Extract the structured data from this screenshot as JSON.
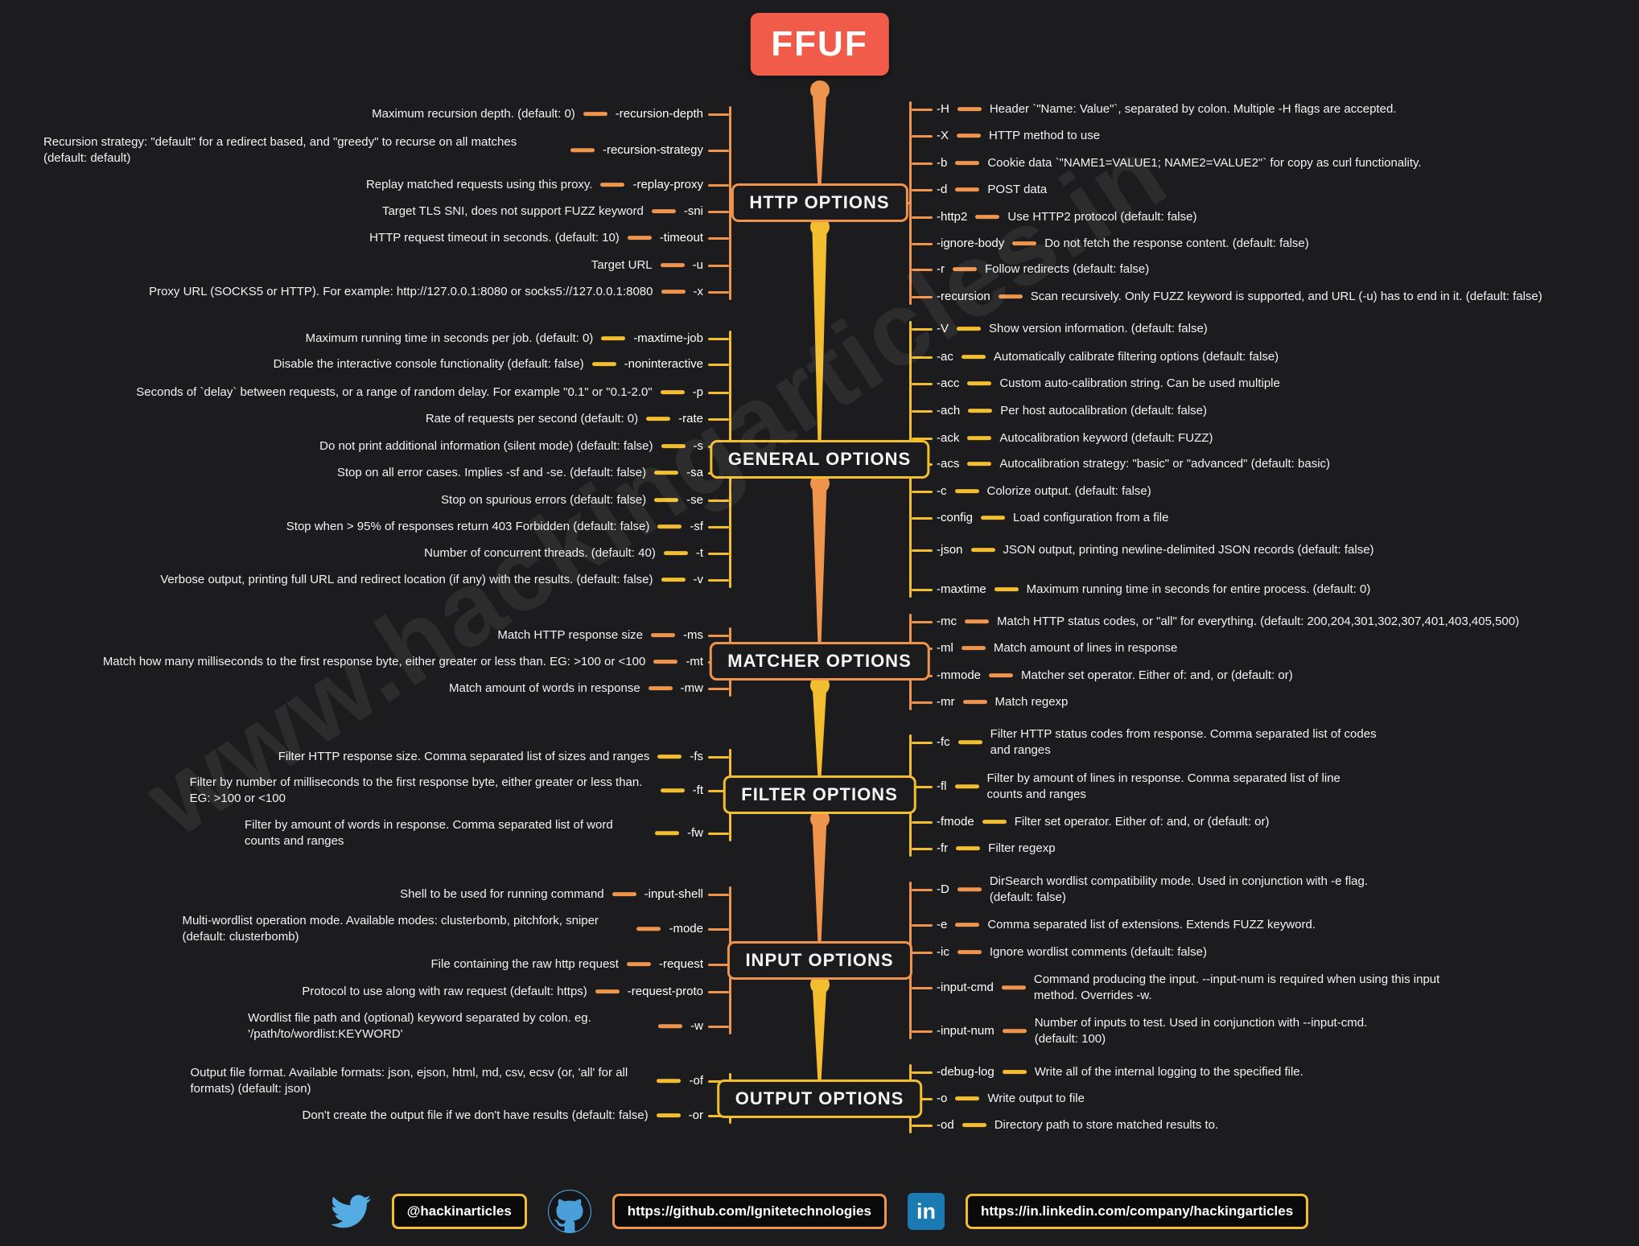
{
  "title": "FFUF",
  "watermark": "www.hackingarticles.in",
  "palette": {
    "background": "#1c1c1e",
    "root_box": "#f15b49",
    "orange": "#ef944d",
    "yellow": "#f2bd2f",
    "text": "#f2f2f2",
    "twitter_blue": "#55ace3",
    "github_blue": "#4a9fd8",
    "linkedin_blue": "#1c7ab2"
  },
  "icons": {
    "linkedin_glyph": "in",
    "twitter": "twitter-bird",
    "github": "github-octocat"
  },
  "sections": [
    {
      "id": "http-options",
      "label": "HTTP OPTIONS",
      "color": "orange",
      "left": [
        {
          "desc": "Maximum recursion depth. (default: 0)",
          "flag": "-recursion-depth"
        },
        {
          "desc": "Recursion strategy: \"default\" for a redirect based, and \"greedy\" to recurse on all matches (default: default)",
          "flag": "-recursion-strategy"
        },
        {
          "desc": "Replay matched requests using this proxy.",
          "flag": "-replay-proxy"
        },
        {
          "desc": "Target TLS SNI, does not support FUZZ keyword",
          "flag": "-sni"
        },
        {
          "desc": "HTTP request timeout in seconds. (default: 10)",
          "flag": "-timeout"
        },
        {
          "desc": "Target URL",
          "flag": "-u"
        },
        {
          "desc": "Proxy URL (SOCKS5 or HTTP). For example: http://127.0.0.1:8080 or socks5://127.0.0.1:8080",
          "flag": "-x"
        }
      ],
      "right": [
        {
          "flag": "-H",
          "desc": "Header `\"Name: Value\"`, separated by colon. Multiple -H flags are accepted."
        },
        {
          "flag": "-X",
          "desc": "HTTP method to use"
        },
        {
          "flag": "-b",
          "desc": "Cookie data `\"NAME1=VALUE1; NAME2=VALUE2\"` for copy as curl functionality."
        },
        {
          "flag": "-d",
          "desc": "POST data"
        },
        {
          "flag": "-http2",
          "desc": "Use HTTP2 protocol (default: false)"
        },
        {
          "flag": "-ignore-body",
          "desc": "Do not fetch the response content. (default: false)"
        },
        {
          "flag": "-r",
          "desc": "Follow redirects (default: false)"
        },
        {
          "flag": "-recursion",
          "desc": "Scan recursively. Only FUZZ keyword is supported, and URL (-u) has to end in it. (default: false)"
        }
      ]
    },
    {
      "id": "general-options",
      "label": "GENERAL OPTIONS",
      "color": "yellow",
      "left": [
        {
          "desc": "Maximum running time in seconds per job. (default: 0)",
          "flag": "-maxtime-job"
        },
        {
          "desc": "Disable the interactive console functionality (default: false)",
          "flag": "-noninteractive"
        },
        {
          "desc": "Seconds of `delay` between requests, or a range of random delay. For example \"0.1\" or \"0.1-2.0\"",
          "flag": "-p"
        },
        {
          "desc": "Rate of requests per second (default: 0)",
          "flag": "-rate"
        },
        {
          "desc": "Do not print additional information (silent mode) (default: false)",
          "flag": "-s"
        },
        {
          "desc": "Stop on all error cases. Implies -sf and -se. (default: false)",
          "flag": "-sa"
        },
        {
          "desc": "Stop on spurious errors (default: false)",
          "flag": "-se"
        },
        {
          "desc": "Stop when > 95% of responses return 403 Forbidden (default: false)",
          "flag": "-sf"
        },
        {
          "desc": "Number of concurrent threads. (default: 40)",
          "flag": "-t"
        },
        {
          "desc": "Verbose output, printing full URL and redirect location (if any) with the results. (default: false)",
          "flag": "-v"
        }
      ],
      "right": [
        {
          "flag": "-V",
          "desc": "Show version information. (default: false)"
        },
        {
          "flag": "-ac",
          "desc": "Automatically calibrate filtering options (default: false)"
        },
        {
          "flag": "-acc",
          "desc": "Custom auto-calibration string. Can be used multiple"
        },
        {
          "flag": "-ach",
          "desc": "Per host autocalibration (default: false)"
        },
        {
          "flag": "-ack",
          "desc": "Autocalibration keyword (default: FUZZ)"
        },
        {
          "flag": "-acs",
          "desc": "Autocalibration strategy: \"basic\" or \"advanced\" (default: basic)"
        },
        {
          "flag": "-c",
          "desc": "Colorize output. (default: false)"
        },
        {
          "flag": "-config",
          "desc": "Load configuration from a file"
        },
        {
          "flag": "-json",
          "desc": "JSON output, printing newline-delimited JSON records (default: false)"
        },
        {
          "flag": "-maxtime",
          "desc": "Maximum running time in seconds for entire process. (default: 0)"
        }
      ]
    },
    {
      "id": "matcher-options",
      "label": "MATCHER OPTIONS",
      "color": "orange",
      "left": [
        {
          "desc": "Match HTTP response size",
          "flag": "-ms"
        },
        {
          "desc": "Match how many milliseconds to the first response byte, either greater or less than. EG: >100 or <100",
          "flag": "-mt"
        },
        {
          "desc": "Match amount of words in response",
          "flag": "-mw"
        }
      ],
      "right": [
        {
          "flag": "-mc",
          "desc": "Match HTTP status codes, or \"all\" for everything. (default: 200,204,301,302,307,401,403,405,500)"
        },
        {
          "flag": "-ml",
          "desc": "Match amount of lines in response"
        },
        {
          "flag": "-mmode",
          "desc": "Matcher set operator. Either of: and, or (default: or)"
        },
        {
          "flag": "-mr",
          "desc": "Match regexp"
        }
      ]
    },
    {
      "id": "filter-options",
      "label": "FILTER OPTIONS",
      "color": "yellow",
      "left": [
        {
          "desc": "Filter HTTP response size. Comma separated list of sizes and ranges",
          "flag": "-fs"
        },
        {
          "desc": "Filter by number of milliseconds to the first response byte, either greater or less than. EG: >100 or <100",
          "flag": "-ft"
        },
        {
          "desc": "Filter by amount of words in response. Comma separated list of word counts and ranges",
          "flag": "-fw"
        }
      ],
      "right": [
        {
          "flag": "-fc",
          "desc": "Filter HTTP status codes from response. Comma separated list of codes and ranges"
        },
        {
          "flag": "-fl",
          "desc": "Filter by amount of lines in response. Comma separated list of line counts and ranges"
        },
        {
          "flag": "-fmode",
          "desc": "Filter set operator. Either of: and, or (default: or)"
        },
        {
          "flag": "-fr",
          "desc": "Filter regexp"
        }
      ]
    },
    {
      "id": "input-options",
      "label": "INPUT OPTIONS",
      "color": "orange",
      "left": [
        {
          "desc": "Shell to be used for running command",
          "flag": "-input-shell"
        },
        {
          "desc": "Multi-wordlist operation mode. Available modes: clusterbomb, pitchfork, sniper (default: clusterbomb)",
          "flag": "-mode"
        },
        {
          "desc": "File containing the raw http request",
          "flag": "-request"
        },
        {
          "desc": "Protocol to use along with raw request (default: https)",
          "flag": "-request-proto"
        },
        {
          "desc": "Wordlist file path and (optional) keyword separated by colon. eg. '/path/to/wordlist:KEYWORD'",
          "flag": "-w"
        }
      ],
      "right": [
        {
          "flag": "-D",
          "desc": "DirSearch wordlist compatibility mode. Used in conjunction with -e flag. (default: false)"
        },
        {
          "flag": "-e",
          "desc": "Comma separated list of extensions. Extends FUZZ keyword."
        },
        {
          "flag": "-ic",
          "desc": "Ignore wordlist comments (default: false)"
        },
        {
          "flag": "-input-cmd",
          "desc": "Command producing the input. --input-num is required when using this input method. Overrides -w."
        },
        {
          "flag": "-input-num",
          "desc": "Number of inputs to test. Used in conjunction with --input-cmd. (default: 100)"
        }
      ]
    },
    {
      "id": "output-options",
      "label": "OUTPUT OPTIONS",
      "color": "yellow",
      "left": [
        {
          "desc": "Output file format. Available formats: json, ejson, html, md, csv, ecsv (or, 'all' for all formats) (default: json)",
          "flag": "-of"
        },
        {
          "desc": "Don't create the output file if we don't have results (default: false)",
          "flag": "-or"
        }
      ],
      "right": [
        {
          "flag": "-debug-log",
          "desc": "Write all of the internal logging to the specified file."
        },
        {
          "flag": "-o",
          "desc": "Write output to file"
        },
        {
          "flag": "-od",
          "desc": "Directory path to store matched results to."
        }
      ]
    }
  ],
  "footer": {
    "twitter_handle": "@hackinarticles",
    "github_url": "https://github.com/Ignitetechnologies",
    "linkedin_url": "https://in.linkedin.com/company/hackingarticles"
  }
}
